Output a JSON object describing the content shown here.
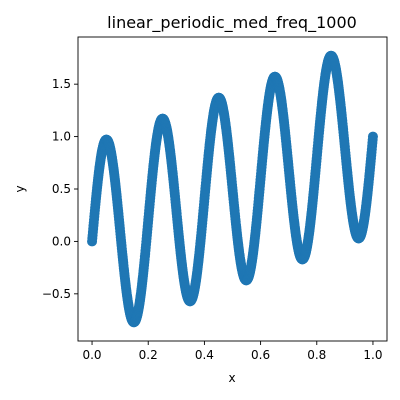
{
  "chart_data": {
    "type": "scatter",
    "title": "linear_periodic_med_freq_1000",
    "xlabel": "x",
    "ylabel": "y",
    "xlim": [
      -0.05,
      1.05
    ],
    "ylim": [
      -0.95,
      1.95
    ],
    "xticks": [
      0.0,
      0.2,
      0.4,
      0.6,
      0.8,
      1.0
    ],
    "xtick_labels": [
      "0.0",
      "0.2",
      "0.4",
      "0.6",
      "0.8",
      "1.0"
    ],
    "yticks": [
      -0.5,
      0.0,
      0.5,
      1.0,
      1.5
    ],
    "ytick_labels": [
      "−0.5",
      "0.0",
      "0.5",
      "1.0",
      "1.5"
    ],
    "grid": false,
    "marker_color": "#1f77b4",
    "point_count": 1000,
    "function": {
      "form": "y = a*x + b*sin(2*pi*f*x)",
      "a": 1.0,
      "b": 0.92,
      "f": 5.0,
      "x_range": [
        0.0,
        1.0
      ]
    },
    "sample_points": [
      {
        "x": 0.0,
        "y": 0.0
      },
      {
        "x": 0.05,
        "y": 0.97
      },
      {
        "x": 0.15,
        "y": -0.77
      },
      {
        "x": 0.25,
        "y": 1.17
      },
      {
        "x": 0.35,
        "y": -0.57
      },
      {
        "x": 0.45,
        "y": 1.37
      },
      {
        "x": 0.55,
        "y": -0.37
      },
      {
        "x": 0.65,
        "y": 1.57
      },
      {
        "x": 0.75,
        "y": -0.17
      },
      {
        "x": 0.85,
        "y": 1.77
      },
      {
        "x": 0.95,
        "y": 0.03
      },
      {
        "x": 1.0,
        "y": 1.0
      }
    ]
  }
}
